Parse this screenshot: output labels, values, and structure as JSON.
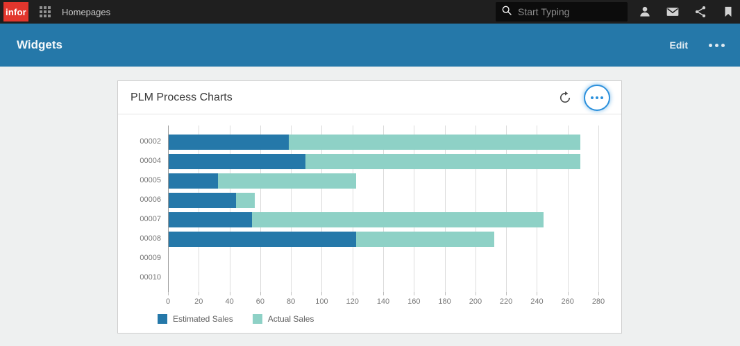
{
  "topbar": {
    "logo_label": "infor",
    "app_name": "Homepages",
    "search_placeholder": "Start Typing"
  },
  "subheader": {
    "title": "Widgets",
    "edit_label": "Edit"
  },
  "widget": {
    "title": "PLM Process Charts"
  },
  "colors": {
    "topbar_bg": "#1f1f1f",
    "header_blue": "#2578a9",
    "logo_red": "#e2362d",
    "estimated_blue": "#2578a9",
    "actual_teal": "#8ed1c6",
    "circle_button_blue": "#2b90dc",
    "page_bg": "#eef0f0"
  },
  "chart_data": {
    "type": "bar",
    "orientation": "horizontal",
    "stacked": true,
    "grid": true,
    "legend_position": "bottom",
    "categories": [
      "00002",
      "00004",
      "00005",
      "00006",
      "00007",
      "00008",
      "00009",
      "00010"
    ],
    "series": [
      {
        "name": "Estimated Sales",
        "color": "#2578a9",
        "values": [
          78,
          89,
          32,
          44,
          54,
          122,
          0,
          0
        ]
      },
      {
        "name": "Actual Sales",
        "color": "#8ed1c6",
        "values": [
          190,
          179,
          90,
          12,
          190,
          90,
          0,
          0
        ]
      }
    ],
    "totals": [
      268,
      268,
      122,
      56,
      244,
      212,
      0,
      0
    ],
    "xlim": [
      0,
      280
    ],
    "tick_step": 20,
    "tick_labels": [
      "0",
      "20",
      "40",
      "60",
      "80",
      "100",
      "120",
      "140",
      "160",
      "180",
      "200",
      "220",
      "240",
      "260",
      "280"
    ]
  }
}
